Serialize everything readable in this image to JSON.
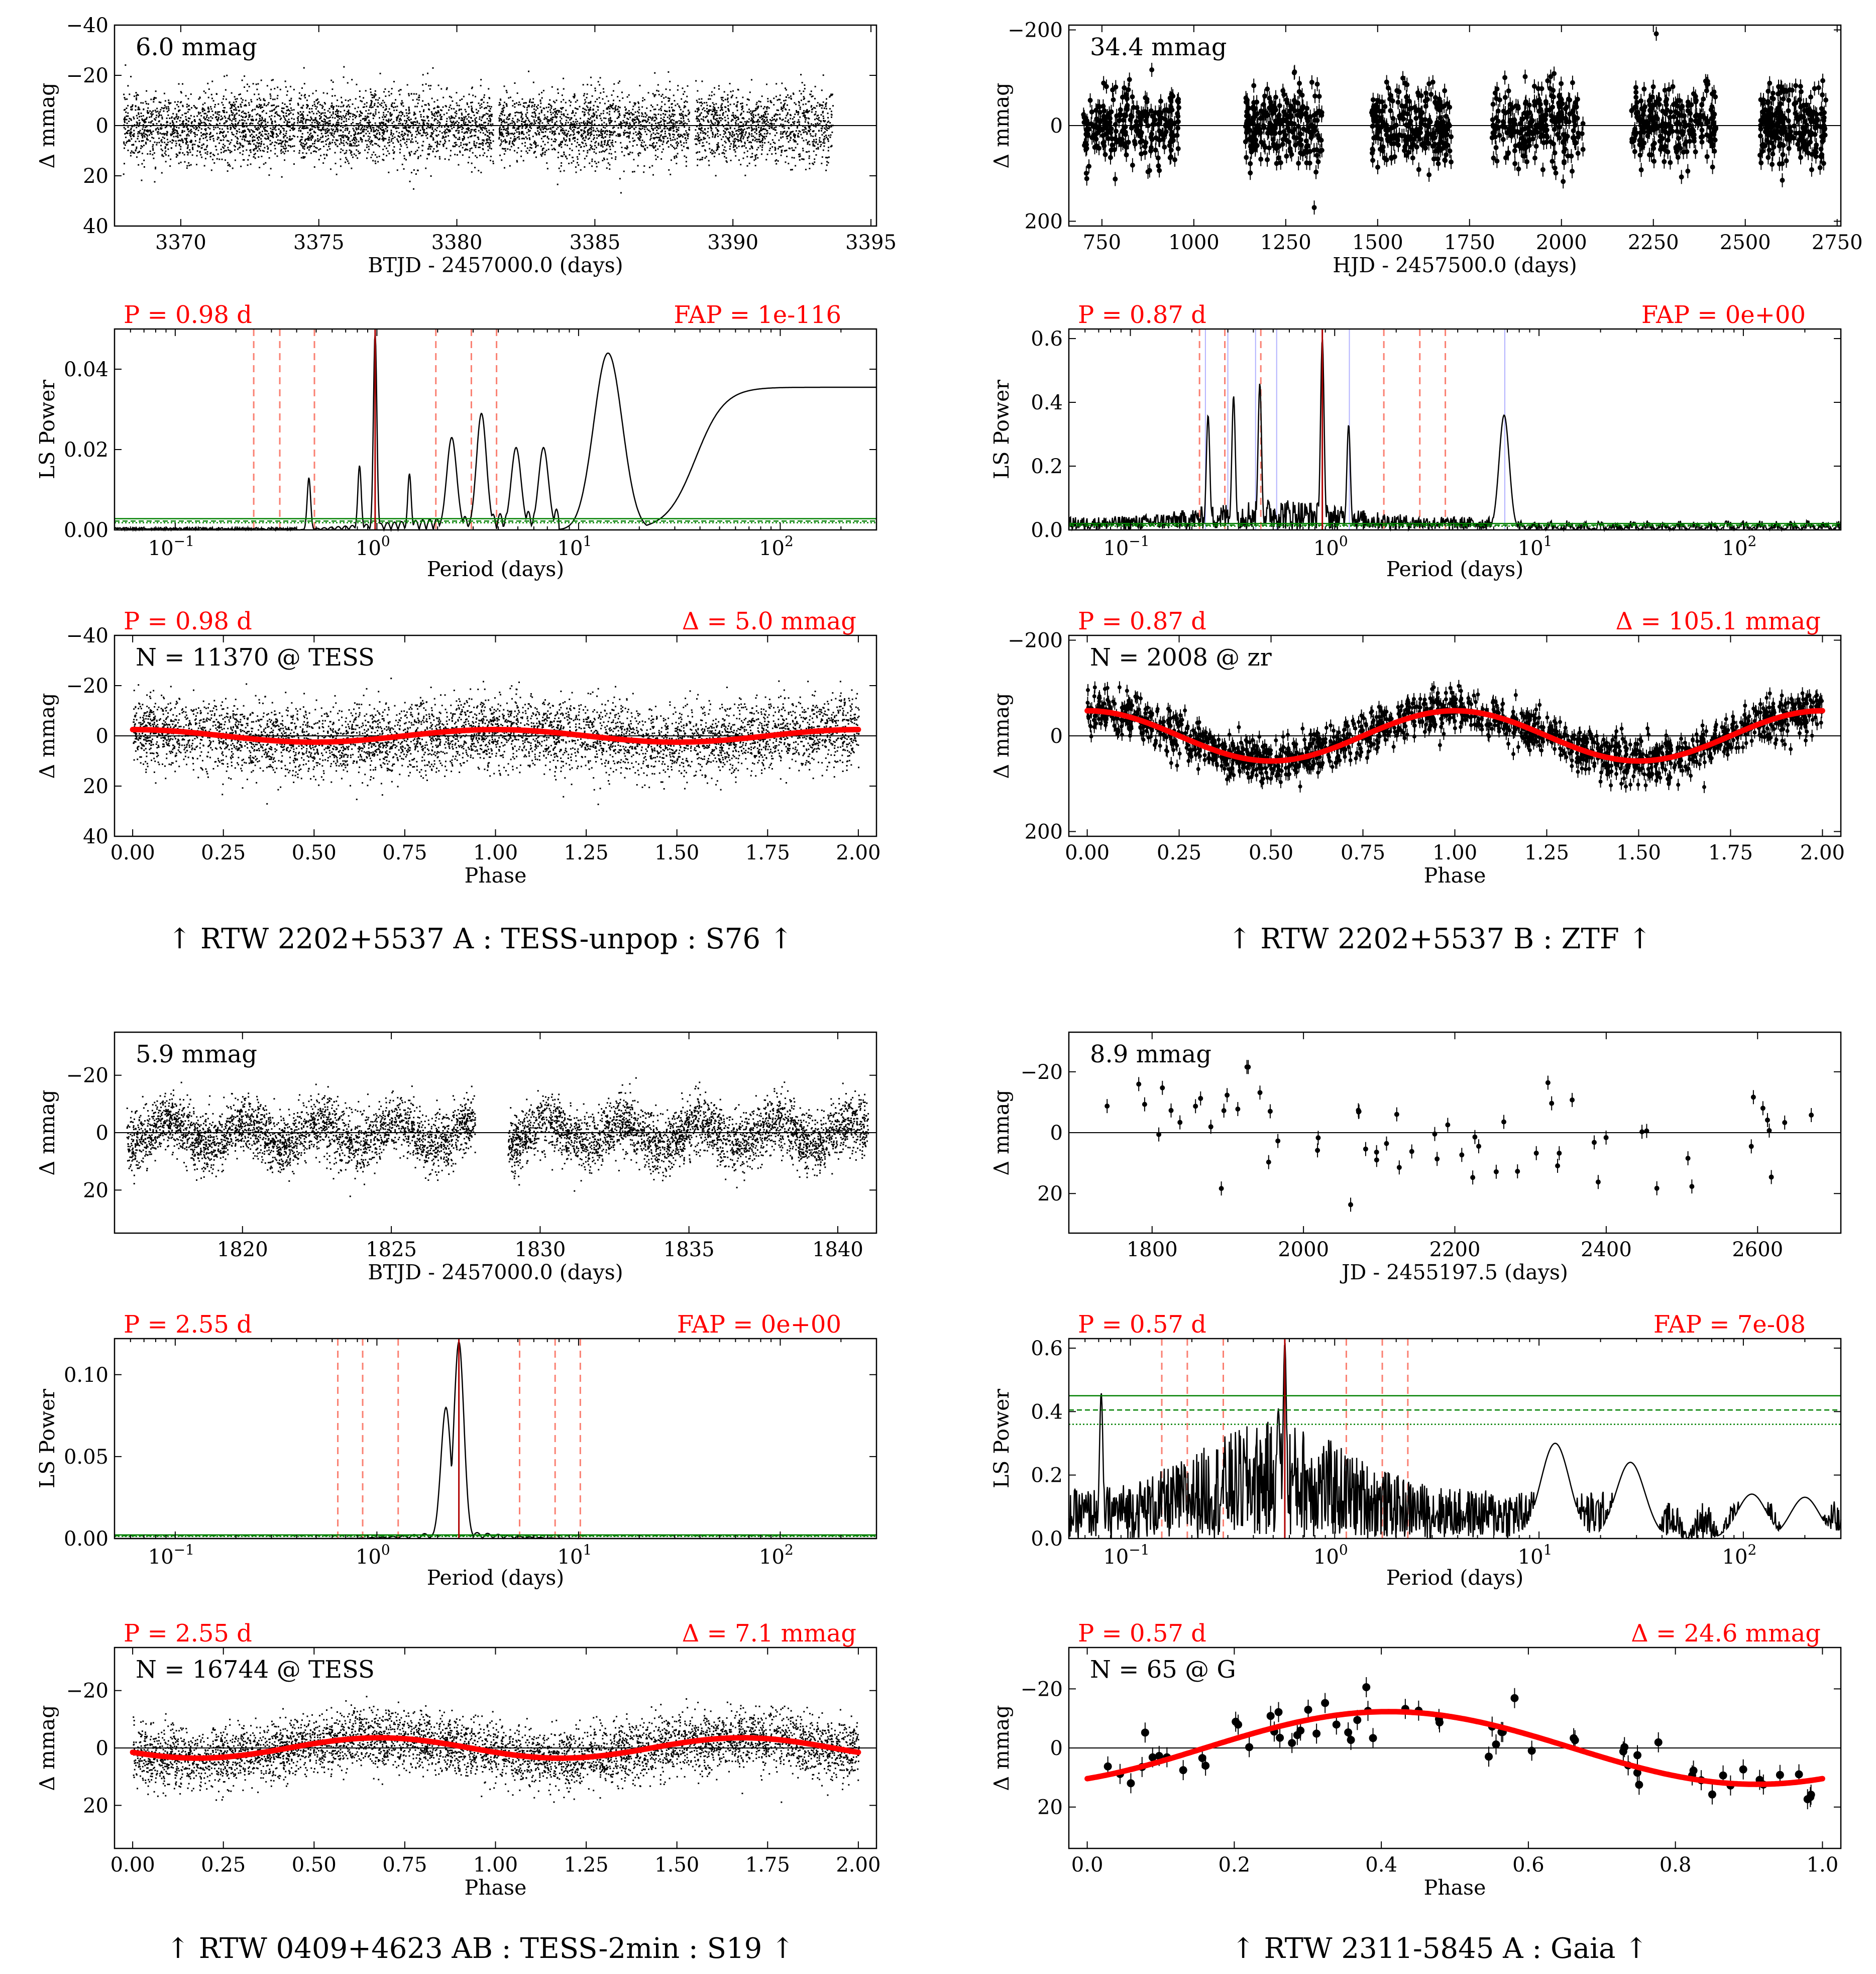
{
  "colors": {
    "red": "#ff0000",
    "black": "#000000",
    "green": "#008000",
    "blue": "#8080ff",
    "salmon": "#fa8072"
  },
  "chart_data": [
    {
      "id": "A",
      "caption": "↑ RTW 2202+5537 A : TESS-unpop : S76 ↑",
      "lc": {
        "type": "scatter",
        "xlabel": "BTJD - 2457000.0 (days)",
        "ylabel": "Δ mmag",
        "xlim": [
          3367.6,
          3395.2
        ],
        "ylim": [
          40,
          -40
        ],
        "xticks": [
          3370,
          3375,
          3380,
          3385,
          3390,
          3395
        ],
        "xtick_labels": [
          "3370",
          "3375",
          "3380",
          "3385",
          "3390",
          "3395"
        ],
        "yticks": [
          -40,
          -20,
          0,
          20,
          40
        ],
        "ytick_labels": [
          "−40",
          "−20",
          "0",
          "20",
          "40"
        ],
        "amp_label": "6.0 mmag",
        "segments": [
          [
            3367.9,
            3374.1
          ],
          [
            3374.2,
            3381.3
          ],
          [
            3381.5,
            3388.4
          ],
          [
            3388.6,
            3393.6
          ]
        ],
        "scatter_sd": 7
      },
      "ls": {
        "type": "line",
        "xlabel": "Period (days)",
        "ylabel": "LS Power",
        "xscale": "log",
        "xlim": [
          0.05,
          300
        ],
        "ylim": [
          0,
          0.05
        ],
        "yticks": [
          0,
          0.02,
          0.04
        ],
        "ytick_labels": [
          "0.00",
          "0.02",
          "0.04"
        ],
        "period_label": "P = 0.98 d",
        "fap_label": "FAP = 1e-116",
        "peak": 0.98,
        "alias_lines": [
          0.245,
          0.33,
          0.49,
          1.96,
          2.94,
          3.92
        ],
        "fap_levels": [
          0.0028,
          0.0022,
          0.0018
        ],
        "peaks": [
          [
            0.98,
            0.049
          ],
          [
            0.46,
            0.013
          ],
          [
            0.82,
            0.016
          ],
          [
            1.45,
            0.014
          ],
          [
            2.35,
            0.023
          ],
          [
            3.3,
            0.029
          ],
          [
            4.9,
            0.0205
          ],
          [
            6.7,
            0.0205
          ],
          [
            14.0,
            0.044
          ]
        ],
        "plateau": 0.0355
      },
      "phase": {
        "type": "scatter",
        "xlabel": "Phase",
        "ylabel": "Δ mmag",
        "xlim": [
          -0.05,
          2.05
        ],
        "ylim": [
          40,
          -40
        ],
        "xticks": [
          0,
          0.25,
          0.5,
          0.75,
          1.0,
          1.25,
          1.5,
          1.75,
          2.0
        ],
        "xtick_labels": [
          "0.00",
          "0.25",
          "0.50",
          "0.75",
          "1.00",
          "1.25",
          "1.50",
          "1.75",
          "2.00"
        ],
        "yticks": [
          -40,
          -20,
          0,
          20,
          40
        ],
        "ytick_labels": [
          "−40",
          "−20",
          "0",
          "20",
          "40"
        ],
        "period_label": "P = 0.98 d",
        "amp_label": "Δ = 5.0 mmag",
        "n_label": "N = 11370 @ TESS",
        "amplitude": 2.5,
        "phase0": 0.0,
        "scatter_sd": 7
      }
    },
    {
      "id": "B",
      "caption": "↑ RTW 2202+5537 B : ZTF ↑",
      "lc": {
        "type": "scatter",
        "xlabel": "HJD - 2457500.0 (days)",
        "ylabel": "Δ mmag",
        "xlim": [
          660,
          2760
        ],
        "ylim": [
          210,
          -210
        ],
        "xticks": [
          750,
          1000,
          1250,
          1500,
          1750,
          2000,
          2250,
          2500,
          2750
        ],
        "xtick_labels": [
          "750",
          "1000",
          "1250",
          "1500",
          "1750",
          "2000",
          "2250",
          "2500",
          "2750"
        ],
        "yticks": [
          -200,
          0,
          200
        ],
        "ytick_labels": [
          "−200",
          "0",
          "200"
        ],
        "amp_label": "34.4 mmag",
        "segments": [
          [
            700,
            960
          ],
          [
            1140,
            1350
          ],
          [
            1480,
            1700
          ],
          [
            1810,
            2060
          ],
          [
            2190,
            2420
          ],
          [
            2540,
            2720
          ]
        ],
        "scatter_sd": 40,
        "errorbars": true
      },
      "ls": {
        "type": "line",
        "xlabel": "Period (days)",
        "ylabel": "LS Power",
        "xscale": "log",
        "xlim": [
          0.05,
          300
        ],
        "ylim": [
          0,
          0.63
        ],
        "yticks": [
          0,
          0.2,
          0.4,
          0.6
        ],
        "ytick_labels": [
          "0.0",
          "0.2",
          "0.4",
          "0.6"
        ],
        "period_label": "P = 0.87 d",
        "fap_label": "FAP = 0e+00",
        "peak": 0.87,
        "alias_lines": [
          0.218,
          0.29,
          0.435,
          1.74,
          2.61,
          3.48
        ],
        "blue_lines": [
          0.233,
          0.3,
          0.41,
          0.52,
          1.18,
          6.8
        ],
        "fap_levels": [
          0.02,
          0.015,
          0.012
        ],
        "peaks": [
          [
            0.87,
            0.6
          ],
          [
            0.24,
            0.36
          ],
          [
            0.32,
            0.42
          ],
          [
            0.43,
            0.46
          ],
          [
            1.17,
            0.33
          ],
          [
            6.75,
            0.36
          ]
        ]
      },
      "phase": {
        "type": "scatter",
        "xlabel": "Phase",
        "ylabel": "Δ mmag",
        "xlim": [
          -0.05,
          2.05
        ],
        "ylim": [
          210,
          -210
        ],
        "xticks": [
          0,
          0.25,
          0.5,
          0.75,
          1.0,
          1.25,
          1.5,
          1.75,
          2.0
        ],
        "xtick_labels": [
          "0.00",
          "0.25",
          "0.50",
          "0.75",
          "1.00",
          "1.25",
          "1.50",
          "1.75",
          "2.00"
        ],
        "yticks": [
          -200,
          0,
          200
        ],
        "ytick_labels": [
          "−200",
          "0",
          "200"
        ],
        "period_label": "P = 0.87 d",
        "amp_label": "Δ = 105.1 mmag",
        "n_label": "N = 2008 @ zr",
        "amplitude": 52.5,
        "phase0": 0.0,
        "scatter_sd": 22,
        "errorbars": true
      }
    },
    {
      "id": "C",
      "caption": "↑ RTW 0409+4623 AB : TESS-2min : S19 ↑",
      "lc": {
        "type": "scatter",
        "xlabel": "BTJD - 2457000.0 (days)",
        "ylabel": "Δ mmag",
        "xlim": [
          1815.7,
          1841.3
        ],
        "ylim": [
          35,
          -35
        ],
        "xticks": [
          1820,
          1825,
          1830,
          1835,
          1840
        ],
        "xtick_labels": [
          "1820",
          "1825",
          "1830",
          "1835",
          "1840"
        ],
        "yticks": [
          -20,
          0,
          20
        ],
        "ytick_labels": [
          "−20",
          "0",
          "20"
        ],
        "amp_label": "5.9 mmag",
        "segments": [
          [
            1816.1,
            1827.8
          ],
          [
            1828.9,
            1841.0
          ]
        ],
        "scatter_sd": 5,
        "sin_amp": 4,
        "sin_period": 2.55
      },
      "ls": {
        "type": "line",
        "xlabel": "Period (days)",
        "ylabel": "LS Power",
        "xscale": "log",
        "xlim": [
          0.05,
          300
        ],
        "ylim": [
          0,
          0.122
        ],
        "yticks": [
          0,
          0.05,
          0.1
        ],
        "ytick_labels": [
          "0.00",
          "0.05",
          "0.10"
        ],
        "period_label": "P = 2.55 d",
        "fap_label": "FAP = 0e+00",
        "peak": 2.55,
        "alias_lines": [
          0.64,
          0.85,
          1.275,
          5.1,
          7.65,
          10.2
        ],
        "fap_levels": [
          0.0022,
          0.0017,
          0.0013
        ],
        "peaks": [
          [
            2.55,
            0.12
          ],
          [
            2.2,
            0.08
          ]
        ]
      },
      "phase": {
        "type": "scatter",
        "xlabel": "Phase",
        "ylabel": "Δ mmag",
        "xlim": [
          -0.05,
          2.05
        ],
        "ylim": [
          35,
          -35
        ],
        "xticks": [
          0,
          0.25,
          0.5,
          0.75,
          1.0,
          1.25,
          1.5,
          1.75,
          2.0
        ],
        "xtick_labels": [
          "0.00",
          "0.25",
          "0.50",
          "0.75",
          "1.00",
          "1.25",
          "1.50",
          "1.75",
          "2.00"
        ],
        "yticks": [
          -20,
          0,
          20
        ],
        "ytick_labels": [
          "−20",
          "0",
          "20"
        ],
        "period_label": "P = 2.55 d",
        "amp_label": "Δ = 7.1 mmag",
        "n_label": "N = 16744 @ TESS",
        "amplitude": -3.55,
        "phase0": 0.18,
        "scatter_sd": 5
      }
    },
    {
      "id": "D",
      "caption": "↑ RTW 2311-5845 A : Gaia ↑",
      "lc": {
        "type": "scatter",
        "xlabel": "JD - 2455197.5 (days)",
        "ylabel": "Δ mmag",
        "xlim": [
          1690,
          2710
        ],
        "ylim": [
          33,
          -33
        ],
        "xticks": [
          1800,
          2000,
          2200,
          2400,
          2600
        ],
        "xtick_labels": [
          "1800",
          "2000",
          "2200",
          "2400",
          "2600"
        ],
        "yticks": [
          -20,
          0,
          20
        ],
        "ytick_labels": [
          "−20",
          "0",
          "20"
        ],
        "amp_label": "8.9 mmag",
        "segments": [
          [
            1700,
            2700
          ]
        ],
        "n_points": 65,
        "scatter_sd": 10,
        "errorbars": true
      },
      "ls": {
        "type": "line",
        "xlabel": "Period (days)",
        "ylabel": "LS Power",
        "xscale": "log",
        "xlim": [
          0.05,
          300
        ],
        "ylim": [
          0,
          0.63
        ],
        "yticks": [
          0,
          0.2,
          0.4,
          0.6
        ],
        "ytick_labels": [
          "0.0",
          "0.2",
          "0.4",
          "0.6"
        ],
        "period_label": "P = 0.57 d",
        "fap_label": "FAP = 7e-08",
        "peak": 0.57,
        "alias_lines": [
          0.1425,
          0.19,
          0.285,
          1.14,
          1.71,
          2.28
        ],
        "fap_levels": [
          0.45,
          0.405,
          0.36
        ],
        "peaks": [
          [
            0.57,
            0.62
          ],
          [
            0.072,
            0.46
          ],
          [
            0.53,
            0.41
          ],
          [
            12,
            0.3
          ],
          [
            28,
            0.24
          ],
          [
            110,
            0.14
          ],
          [
            200,
            0.13
          ]
        ]
      },
      "phase": {
        "type": "scatter",
        "xlabel": "Phase",
        "ylabel": "Δ mmag",
        "xlim": [
          -0.025,
          1.025
        ],
        "ylim": [
          34,
          -34
        ],
        "xticks": [
          0,
          0.2,
          0.4,
          0.6,
          0.8,
          1.0
        ],
        "xtick_labels": [
          "0.0",
          "0.2",
          "0.4",
          "0.6",
          "0.8",
          "1.0"
        ],
        "yticks": [
          -20,
          0,
          20
        ],
        "ytick_labels": [
          "−20",
          "0",
          "20"
        ],
        "period_label": "P = 0.57 d",
        "amp_label": "Δ = 24.6 mmag",
        "n_label": "N = 65 @ G",
        "amplitude": 12.3,
        "phase0": 0.41,
        "scatter_sd": 6,
        "n_points": 65,
        "errorbars": true
      }
    }
  ]
}
